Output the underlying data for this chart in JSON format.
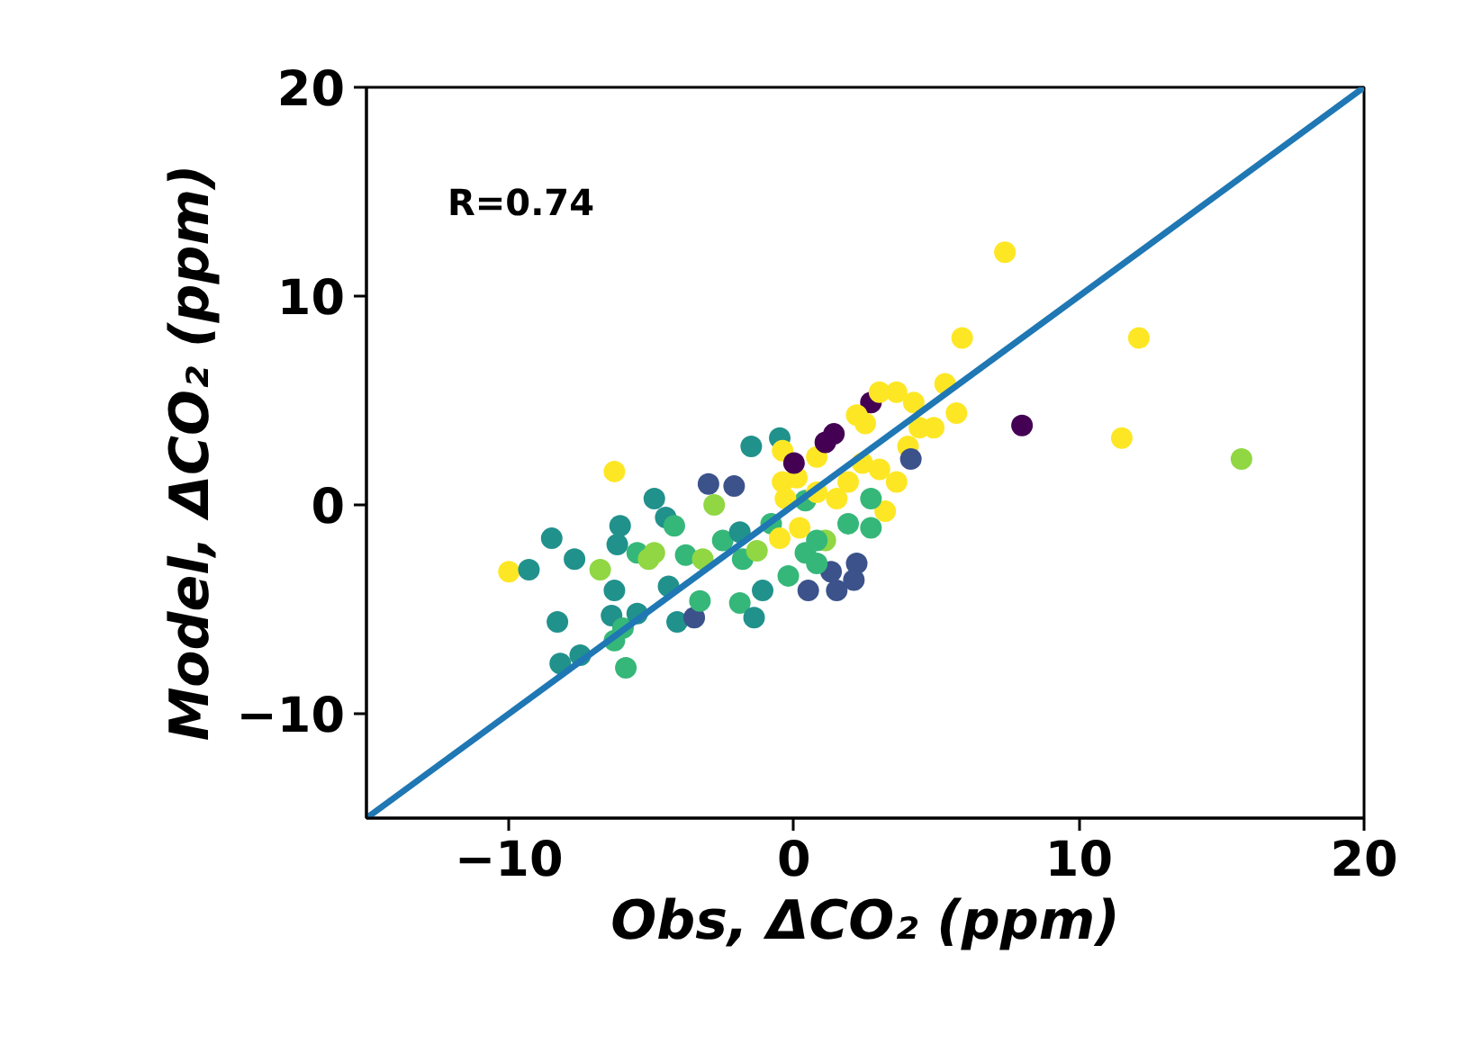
{
  "chart_data": {
    "type": "scatter",
    "xlabel": "Obs, ΔCO₂ (ppm)",
    "ylabel": "Model, ΔCO₂ (ppm)",
    "annotations": [
      "R=0.74"
    ],
    "xlim": [
      -15,
      20
    ],
    "ylim": [
      -15,
      20
    ],
    "xticks": [
      -10,
      0,
      10,
      20
    ],
    "yticks": [
      -10,
      0,
      10,
      20
    ],
    "grid": false,
    "series": [
      {
        "marker": "circle",
        "x": [
          7.4,
          5.9,
          12.1,
          8.0,
          11.5,
          15.7,
          5.7,
          5.3,
          -10.0,
          -9.3,
          -8.5,
          -7.7,
          -6.8,
          -6.3,
          -8.3,
          -8.2,
          -7.5,
          -5.9,
          -6.3,
          -6.4,
          -6.3,
          -6.1,
          -6.2,
          -5.5,
          -1.5,
          -0.5,
          -4.9,
          -4.5,
          -6.0,
          -5.5,
          -4.9,
          -4.2,
          -3.0,
          -2.1,
          -2.8,
          -4.1,
          -3.5,
          -3.3,
          -4.4,
          -1.9,
          -1.4,
          -1.1,
          0.5,
          -0.2,
          -2.5,
          -1.9,
          -0.8,
          -0.4,
          0.4,
          0.1,
          0.8,
          -0.4,
          1.1,
          1.1,
          0.4,
          1.3,
          -5.1,
          -3.8,
          -1.8,
          -1.3,
          -3.2,
          4.9,
          2.7,
          3.0,
          3.6,
          4.2,
          2.2,
          1.4,
          4.4,
          4.0,
          4.1,
          3.6,
          3.2,
          2.7,
          1.9,
          0.0,
          -0.3,
          0.8,
          1.5,
          -0.5,
          0.2,
          0.8,
          1.9,
          2.7,
          2.2,
          0.8,
          2.5,
          3.0,
          2.4,
          2.1,
          1.5
        ],
        "values": [
          12.1,
          8.0,
          8.0,
          3.8,
          3.2,
          2.2,
          4.4,
          5.8,
          -3.2,
          -3.1,
          -1.6,
          -2.6,
          -3.1,
          1.6,
          -5.6,
          -7.6,
          -7.2,
          -7.8,
          -6.5,
          -5.3,
          -4.1,
          -1.0,
          -1.9,
          -2.3,
          2.8,
          3.2,
          0.3,
          -0.6,
          -5.9,
          -5.2,
          -2.3,
          -1.0,
          1.0,
          0.9,
          0.0,
          -5.6,
          -5.4,
          -4.6,
          -3.9,
          -4.7,
          -5.4,
          -4.1,
          -4.1,
          -3.4,
          -1.7,
          -1.3,
          -0.9,
          1.1,
          0.2,
          1.3,
          2.3,
          2.6,
          3.0,
          -1.7,
          -2.3,
          -3.2,
          -2.6,
          -2.4,
          -2.6,
          -2.2,
          -2.6,
          3.7,
          4.9,
          5.4,
          5.4,
          4.9,
          4.3,
          3.4,
          3.7,
          2.8,
          2.2,
          1.1,
          -0.3,
          0.3,
          1.1,
          2.0,
          0.3,
          0.6,
          0.3,
          -1.6,
          -1.1,
          -1.7,
          -0.9,
          -1.1,
          -2.8,
          -2.8,
          3.9,
          1.7,
          2.0,
          -3.6,
          -4.1
        ],
        "colors": [
          "#fde725",
          "#fde725",
          "#fde725",
          "#440154",
          "#fde725",
          "#90d743",
          "#fde725",
          "#fde725",
          "#fde725",
          "#21918c",
          "#21918c",
          "#21918c",
          "#90d743",
          "#fde725",
          "#21918c",
          "#21918c",
          "#21918c",
          "#35b779",
          "#35b779",
          "#21918c",
          "#21918c",
          "#21918c",
          "#21918c",
          "#35b779",
          "#21918c",
          "#21918c",
          "#21918c",
          "#21918c",
          "#35b779",
          "#21918c",
          "#90d743",
          "#35b779",
          "#3b528b",
          "#3b528b",
          "#90d743",
          "#21918c",
          "#3b528b",
          "#35b779",
          "#21918c",
          "#35b779",
          "#21918c",
          "#21918c",
          "#3b528b",
          "#35b779",
          "#35b779",
          "#21918c",
          "#35b779",
          "#fde725",
          "#35b779",
          "#fde725",
          "#fde725",
          "#fde725",
          "#440154",
          "#90d743",
          "#35b779",
          "#3b528b",
          "#90d743",
          "#35b779",
          "#35b779",
          "#90d743",
          "#90d743",
          "#fde725",
          "#440154",
          "#fde725",
          "#fde725",
          "#fde725",
          "#fde725",
          "#440154",
          "#fde725",
          "#fde725",
          "#3b528b",
          "#fde725",
          "#fde725",
          "#35b779",
          "#fde725",
          "#440154",
          "#fde725",
          "#fde725",
          "#fde725",
          "#fde725",
          "#fde725",
          "#35b779",
          "#35b779",
          "#35b779",
          "#3b528b",
          "#35b779",
          "#fde725",
          "#fde725",
          "#fde725",
          "#3b528b",
          "#3b528b"
        ]
      },
      {
        "type": "line",
        "x": [
          -15,
          20
        ],
        "values": [
          -15,
          20
        ],
        "color": "#1f77b4"
      }
    ]
  }
}
